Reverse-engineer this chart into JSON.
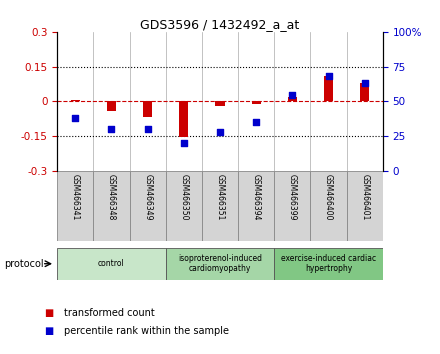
{
  "title": "GDS3596 / 1432492_a_at",
  "samples": [
    "GSM466341",
    "GSM466348",
    "GSM466349",
    "GSM466350",
    "GSM466351",
    "GSM466394",
    "GSM466399",
    "GSM466400",
    "GSM466401"
  ],
  "transformed_count": [
    0.005,
    -0.04,
    -0.065,
    -0.155,
    -0.02,
    -0.01,
    0.02,
    0.11,
    0.08
  ],
  "percentile_rank": [
    38,
    30,
    30,
    20,
    28,
    35,
    55,
    68,
    63
  ],
  "ylim_left": [
    -0.3,
    0.3
  ],
  "ylim_right": [
    0,
    100
  ],
  "yticks_left": [
    -0.3,
    -0.15,
    0,
    0.15,
    0.3
  ],
  "yticks_right": [
    0,
    25,
    50,
    75,
    100
  ],
  "hlines": [
    0.15,
    -0.15
  ],
  "red_color": "#cc0000",
  "blue_color": "#0000cc",
  "bar_width": 0.25,
  "groups": [
    {
      "label": "control",
      "indices": [
        0,
        1,
        2
      ],
      "color": "#c8e6c9"
    },
    {
      "label": "isoproterenol-induced\ncardiomyopathy",
      "indices": [
        3,
        4,
        5
      ],
      "color": "#a5d6a7"
    },
    {
      "label": "exercise-induced cardiac\nhypertrophy",
      "indices": [
        6,
        7,
        8
      ],
      "color": "#81c784"
    }
  ],
  "protocol_label": "protocol",
  "legend": [
    {
      "label": "transformed count",
      "color": "#cc0000"
    },
    {
      "label": "percentile rank within the sample",
      "color": "#0000cc"
    }
  ]
}
